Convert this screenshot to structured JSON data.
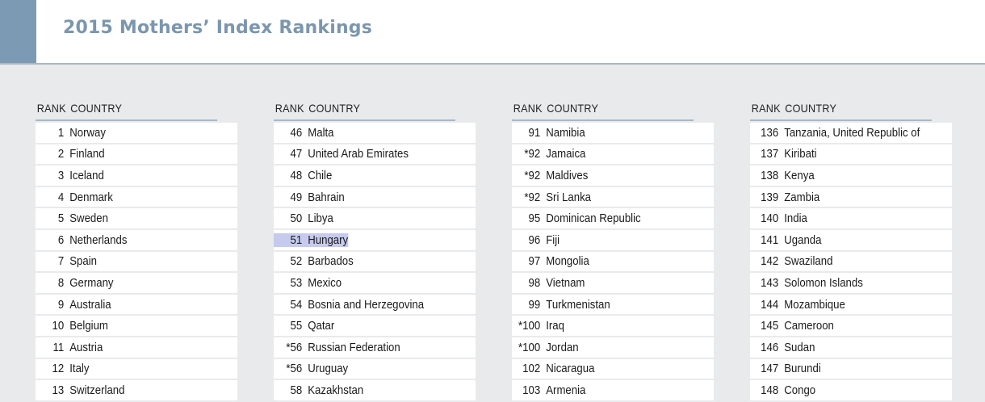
{
  "title": "2015 Mothers’ Index Rankings",
  "colors": {
    "accent": "#7d9ab4",
    "title": "#7b96ad",
    "highlight": "#c6cbee"
  },
  "headers": {
    "rank": "RANK",
    "country": "COUNTRY"
  },
  "highlighted": {
    "rank": "51",
    "country": "Hungary"
  },
  "columns": [
    {
      "rows": [
        {
          "rank": "1",
          "country": "Norway"
        },
        {
          "rank": "2",
          "country": "Finland"
        },
        {
          "rank": "3",
          "country": "Iceland"
        },
        {
          "rank": "4",
          "country": "Denmark"
        },
        {
          "rank": "5",
          "country": "Sweden"
        },
        {
          "rank": "6",
          "country": "Netherlands"
        },
        {
          "rank": "7",
          "country": "Spain"
        },
        {
          "rank": "8",
          "country": "Germany"
        },
        {
          "rank": "9",
          "country": "Australia"
        },
        {
          "rank": "10",
          "country": "Belgium"
        },
        {
          "rank": "11",
          "country": "Austria"
        },
        {
          "rank": "12",
          "country": "Italy"
        },
        {
          "rank": "13",
          "country": "Switzerland"
        }
      ]
    },
    {
      "rows": [
        {
          "rank": "46",
          "country": "Malta"
        },
        {
          "rank": "47",
          "country": "United Arab Emirates"
        },
        {
          "rank": "48",
          "country": "Chile"
        },
        {
          "rank": "49",
          "country": "Bahrain"
        },
        {
          "rank": "50",
          "country": "Libya"
        },
        {
          "rank": "51",
          "country": "Hungary"
        },
        {
          "rank": "52",
          "country": "Barbados"
        },
        {
          "rank": "53",
          "country": "Mexico"
        },
        {
          "rank": "54",
          "country": "Bosnia and Herzegovina"
        },
        {
          "rank": "55",
          "country": "Qatar"
        },
        {
          "rank": "*56",
          "country": "Russian Federation"
        },
        {
          "rank": "*56",
          "country": "Uruguay"
        },
        {
          "rank": "58",
          "country": "Kazakhstan"
        }
      ]
    },
    {
      "rows": [
        {
          "rank": "91",
          "country": "Namibia"
        },
        {
          "rank": "*92",
          "country": "Jamaica"
        },
        {
          "rank": "*92",
          "country": "Maldives"
        },
        {
          "rank": "*92",
          "country": "Sri Lanka"
        },
        {
          "rank": "95",
          "country": "Dominican Republic"
        },
        {
          "rank": "96",
          "country": "Fiji"
        },
        {
          "rank": "97",
          "country": "Mongolia"
        },
        {
          "rank": "98",
          "country": "Vietnam"
        },
        {
          "rank": "99",
          "country": "Turkmenistan"
        },
        {
          "rank": "*100",
          "country": "Iraq"
        },
        {
          "rank": "*100",
          "country": "Jordan"
        },
        {
          "rank": "102",
          "country": "Nicaragua"
        },
        {
          "rank": "103",
          "country": "Armenia"
        }
      ]
    },
    {
      "rows": [
        {
          "rank": "136",
          "country": "Tanzania, United Republic of"
        },
        {
          "rank": "137",
          "country": "Kiribati"
        },
        {
          "rank": "138",
          "country": "Kenya"
        },
        {
          "rank": "139",
          "country": "Zambia"
        },
        {
          "rank": "140",
          "country": "India"
        },
        {
          "rank": "141",
          "country": "Uganda"
        },
        {
          "rank": "142",
          "country": "Swaziland"
        },
        {
          "rank": "143",
          "country": "Solomon Islands"
        },
        {
          "rank": "144",
          "country": "Mozambique"
        },
        {
          "rank": "145",
          "country": "Cameroon"
        },
        {
          "rank": "146",
          "country": "Sudan"
        },
        {
          "rank": "147",
          "country": "Burundi"
        },
        {
          "rank": "148",
          "country": "Congo"
        }
      ]
    }
  ]
}
